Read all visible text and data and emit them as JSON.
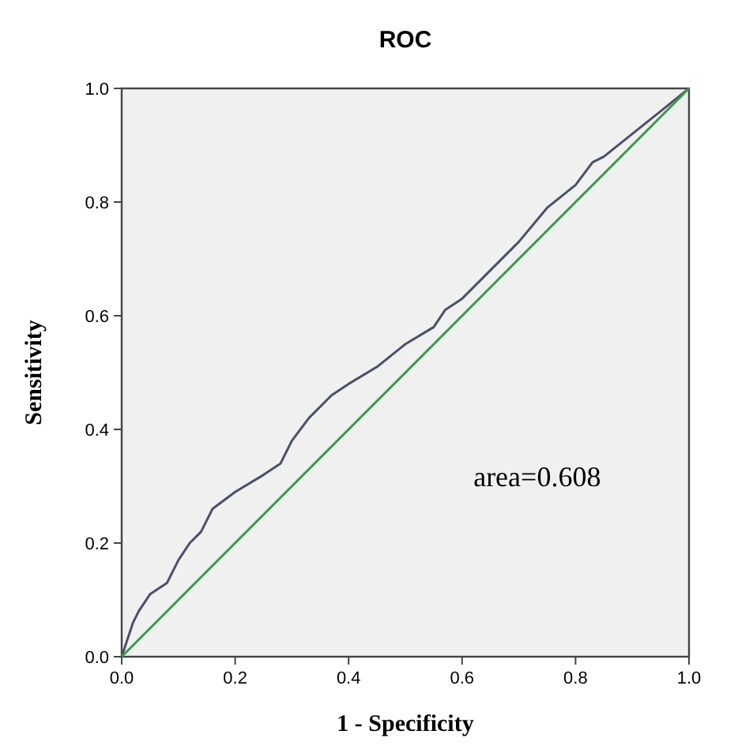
{
  "chart_data": {
    "type": "line",
    "title": "ROC",
    "xlabel": "1 -   Specificity",
    "ylabel": "Sensitivity",
    "xlim": [
      0,
      1
    ],
    "ylim": [
      0,
      1
    ],
    "xticks": [
      {
        "value": 0,
        "label": "0.0"
      },
      0.2,
      0.4,
      0.6,
      0.8,
      {
        "value": 1,
        "label": "1.0"
      }
    ],
    "yticks": [
      {
        "value": 0,
        "label": "0.0"
      },
      0.2,
      0.4,
      0.6,
      0.8,
      {
        "value": 1,
        "label": "1.0"
      }
    ],
    "grid": false,
    "annotations": [
      "area=0.608"
    ],
    "series": [
      {
        "color": "#4a5068",
        "x": [
          0,
          0.01,
          0.02,
          0.03,
          0.05,
          0.08,
          0.1,
          0.12,
          0.14,
          0.16,
          0.2,
          0.25,
          0.28,
          0.3,
          0.33,
          0.37,
          0.4,
          0.45,
          0.5,
          0.55,
          0.57,
          0.6,
          0.65,
          0.7,
          0.75,
          0.8,
          0.83,
          0.85,
          0.9,
          0.95,
          1
        ],
        "values": [
          0,
          0.03,
          0.06,
          0.08,
          0.11,
          0.13,
          0.17,
          0.2,
          0.22,
          0.26,
          0.29,
          0.32,
          0.34,
          0.38,
          0.42,
          0.46,
          0.48,
          0.51,
          0.55,
          0.58,
          0.61,
          0.63,
          0.68,
          0.73,
          0.79,
          0.83,
          0.87,
          0.88,
          0.92,
          0.96,
          1
        ]
      },
      {
        "color": "#3a9a4a",
        "x": [
          0,
          1
        ],
        "values": [
          0,
          1
        ]
      }
    ]
  }
}
